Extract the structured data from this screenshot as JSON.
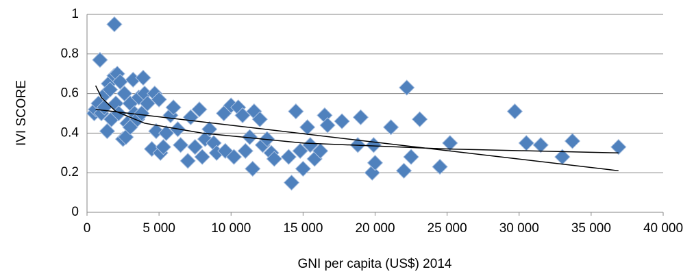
{
  "chart_data": {
    "type": "scatter",
    "y_label": "IVI SCORE",
    "x_label": "GNI per capita (US$) 2014",
    "xlim": [
      0,
      40000
    ],
    "xticks": [
      0,
      {
        "value": 5000,
        "label": "5 000"
      },
      {
        "value": 10000,
        "label": "10 000"
      },
      {
        "value": 15000,
        "label": "15 000"
      },
      {
        "value": 20000,
        "label": "20 000"
      },
      {
        "value": 25000,
        "label": "25 000"
      },
      {
        "value": 30000,
        "label": "30 000"
      },
      {
        "value": 35000,
        "label": "35 000"
      },
      {
        "value": 40000,
        "label": "40 000"
      }
    ],
    "ylim": [
      0,
      1
    ],
    "yticks": [
      0,
      0.2,
      0.4,
      0.6,
      0.8,
      1
    ],
    "grid": true,
    "color": "#4f81bd",
    "x": [
      500,
      600,
      800,
      900,
      1000,
      1200,
      1300,
      1400,
      1500,
      1600,
      1700,
      1900,
      1900,
      2000,
      2100,
      2200,
      2300,
      2500,
      2600,
      2700,
      2800,
      3000,
      3000,
      3200,
      3300,
      3500,
      3600,
      3800,
      3900,
      4000,
      4200,
      4500,
      4700,
      4800,
      5000,
      5100,
      5300,
      5500,
      5800,
      6000,
      6300,
      6500,
      7000,
      7200,
      7500,
      7800,
      8000,
      8200,
      8500,
      8800,
      9000,
      9500,
      9600,
      10000,
      10200,
      10500,
      10800,
      11000,
      11300,
      11500,
      11600,
      12000,
      12200,
      12500,
      12800,
      13000,
      14000,
      14200,
      14500,
      14800,
      15000,
      15300,
      15500,
      15800,
      16200,
      16500,
      16700,
      17700,
      18800,
      19000,
      19800,
      19900,
      20000,
      21100,
      22000,
      22200,
      22500,
      23100,
      24500,
      25200,
      29700,
      30500,
      31500,
      33000,
      33700,
      36900
    ],
    "values": [
      0.5,
      0.52,
      0.55,
      0.77,
      0.5,
      0.53,
      0.6,
      0.41,
      0.65,
      0.62,
      0.47,
      0.95,
      0.69,
      0.55,
      0.7,
      0.5,
      0.66,
      0.37,
      0.6,
      0.38,
      0.45,
      0.55,
      0.43,
      0.67,
      0.5,
      0.47,
      0.58,
      0.5,
      0.68,
      0.6,
      0.55,
      0.32,
      0.6,
      0.41,
      0.57,
      0.3,
      0.33,
      0.4,
      0.49,
      0.53,
      0.42,
      0.34,
      0.26,
      0.48,
      0.33,
      0.52,
      0.28,
      0.37,
      0.42,
      0.35,
      0.3,
      0.5,
      0.31,
      0.54,
      0.28,
      0.53,
      0.49,
      0.31,
      0.38,
      0.22,
      0.51,
      0.47,
      0.34,
      0.37,
      0.3,
      0.27,
      0.28,
      0.15,
      0.51,
      0.31,
      0.22,
      0.43,
      0.34,
      0.27,
      0.31,
      0.49,
      0.44,
      0.46,
      0.34,
      0.48,
      0.2,
      0.34,
      0.25,
      0.43,
      0.21,
      0.63,
      0.28,
      0.47,
      0.23,
      0.35,
      0.51,
      0.35,
      0.34,
      0.28,
      0.36,
      0.33
    ],
    "trendlines": [
      {
        "x": [
          600,
          36900
        ],
        "y": [
          0.52,
          0.21
        ]
      },
      {
        "x": [
          600,
          1000,
          2000,
          4000,
          8000,
          15000,
          25000,
          36900
        ],
        "y": [
          0.64,
          0.58,
          0.51,
          0.45,
          0.4,
          0.35,
          0.32,
          0.3
        ]
      }
    ]
  }
}
